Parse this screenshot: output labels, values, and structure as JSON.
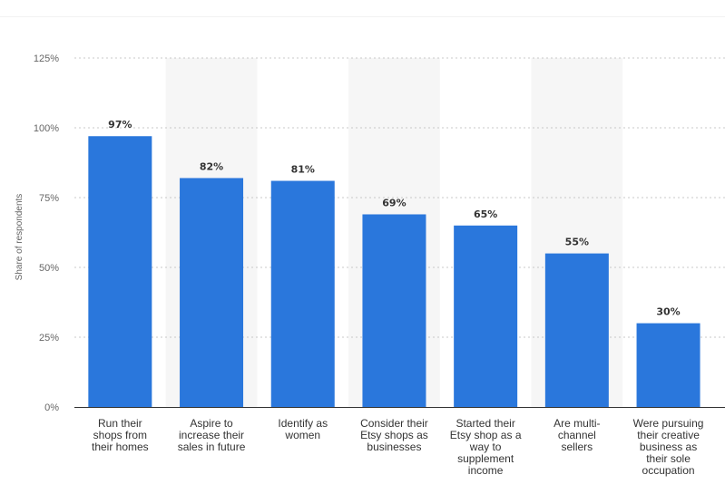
{
  "chart_data": {
    "type": "bar",
    "ylabel": "Share of respondents",
    "ylim": [
      0,
      125
    ],
    "yticks": [
      0,
      25,
      50,
      75,
      100,
      125
    ],
    "ytick_labels": [
      "0%",
      "25%",
      "50%",
      "75%",
      "100%",
      "125%"
    ],
    "grid": true,
    "categories": [
      [
        "Run their",
        "shops from",
        "their homes"
      ],
      [
        "Aspire to",
        "increase their",
        "sales in future"
      ],
      [
        "Identify as",
        "women"
      ],
      [
        "Consider their",
        "Etsy shops as",
        "businesses"
      ],
      [
        "Started their",
        "Etsy shop as a",
        "way to",
        "supplement",
        "income"
      ],
      [
        "Are multi-",
        "channel",
        "sellers"
      ],
      [
        "Were pursuing",
        "their creative",
        "business as",
        "their sole",
        "occupation"
      ]
    ],
    "values": [
      97,
      82,
      81,
      69,
      65,
      55,
      30
    ],
    "value_labels": [
      "97%",
      "82%",
      "81%",
      "69%",
      "65%",
      "55%",
      "30%"
    ],
    "colors": {
      "bar": "#2a77dc",
      "alt_band": "#f6f6f6"
    }
  }
}
